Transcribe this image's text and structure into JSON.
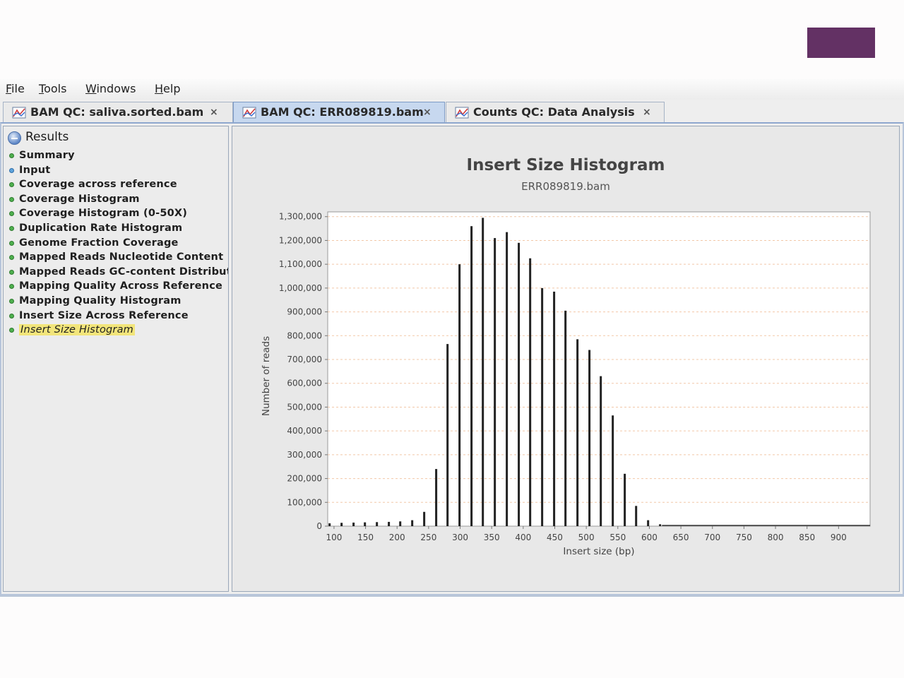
{
  "menu": [
    "File",
    "Tools",
    "Windows",
    "Help"
  ],
  "tabs": [
    {
      "label": "BAM QC: saliva.sorted.bam",
      "active": false
    },
    {
      "label": "BAM QC: ERR089819.bam",
      "active": true
    },
    {
      "label": "Counts QC: Data Analysis",
      "active": false
    }
  ],
  "tab_close_glyph": "×",
  "sidebar": {
    "title": "Results",
    "items": [
      {
        "label": "Summary",
        "dot": "green"
      },
      {
        "label": "Input",
        "dot": "blue"
      },
      {
        "label": "Coverage across reference",
        "dot": "green"
      },
      {
        "label": "Coverage Histogram",
        "dot": "green"
      },
      {
        "label": "Coverage Histogram (0-50X)",
        "dot": "green"
      },
      {
        "label": "Duplication Rate Histogram",
        "dot": "green"
      },
      {
        "label": "Genome Fraction Coverage",
        "dot": "green"
      },
      {
        "label": "Mapped Reads Nucleotide Content",
        "dot": "green"
      },
      {
        "label": "Mapped Reads GC-content Distributi",
        "dot": "green"
      },
      {
        "label": "Mapping Quality Across Reference",
        "dot": "green"
      },
      {
        "label": "Mapping Quality Histogram",
        "dot": "green"
      },
      {
        "label": "Insert Size Across Reference",
        "dot": "green"
      },
      {
        "label": "Insert Size Histogram",
        "dot": "green",
        "selected": true
      }
    ]
  },
  "colors": {
    "accent_block": "#633164",
    "selected_highlight": "#f2e57a",
    "bar": "#222222",
    "grid": "#f2c8a8"
  },
  "chart_data": {
    "type": "bar",
    "title": "Insert Size Histogram",
    "subtitle": "ERR089819.bam",
    "xlabel": "Insert size (bp)",
    "ylabel": "Number of reads",
    "xlim": [
      90,
      950
    ],
    "ylim": [
      0,
      1320000
    ],
    "x_ticks": [
      100,
      150,
      200,
      250,
      300,
      350,
      400,
      450,
      500,
      550,
      600,
      650,
      700,
      750,
      800,
      850,
      900
    ],
    "y_ticks": [
      0,
      100000,
      200000,
      300000,
      400000,
      500000,
      600000,
      700000,
      800000,
      900000,
      1000000,
      1100000,
      1200000,
      1300000
    ],
    "y_tick_labels": [
      "0",
      "100,000",
      "200,000",
      "300,000",
      "400,000",
      "500,000",
      "600,000",
      "700,000",
      "800,000",
      "900,000",
      "1,000,000",
      "1,100,000",
      "1,200,000",
      "1,300,000"
    ],
    "grid": true,
    "series": [
      {
        "name": "Insert size",
        "x": [
          93,
          112,
          131,
          149,
          168,
          187,
          205,
          224,
          243,
          262,
          280,
          299,
          318,
          336,
          355,
          374,
          393,
          411,
          430,
          449,
          467,
          486,
          505,
          523,
          542,
          561,
          579,
          598,
          617
        ],
        "values": [
          12000,
          14000,
          15000,
          16000,
          17000,
          18000,
          20000,
          25000,
          60000,
          240000,
          765000,
          1100000,
          1260000,
          1295000,
          1210000,
          1235000,
          1190000,
          1125000,
          1000000,
          985000,
          905000,
          785000,
          740000,
          630000,
          465000,
          220000,
          85000,
          25000,
          8000
        ]
      }
    ]
  }
}
